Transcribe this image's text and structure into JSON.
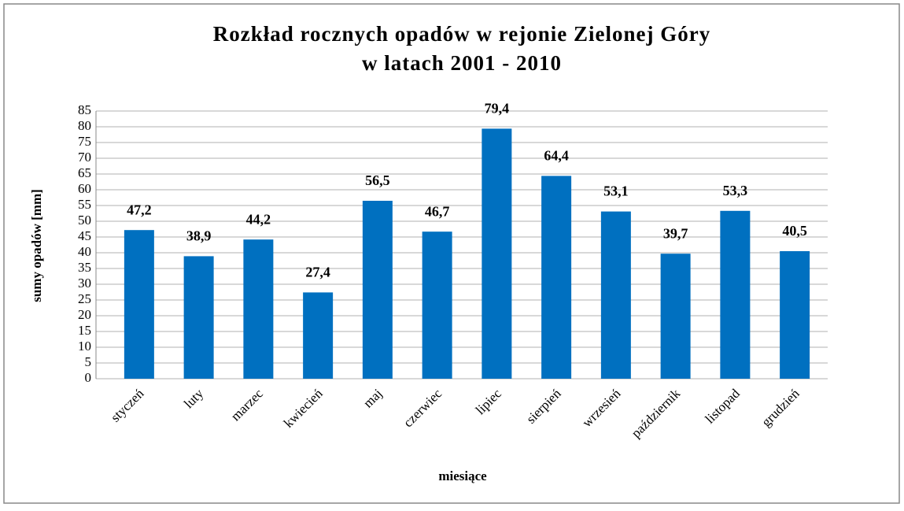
{
  "chart_data": {
    "type": "bar",
    "title": [
      "Rozkład rocznych opadów w rejonie Zielonej Góry",
      "w latach 2001 - 2010"
    ],
    "ylabel": "sumy opadów [mm]",
    "xlabel": "miesiące",
    "categories": [
      "styczeń",
      "luty",
      "marzec",
      "kwiecień",
      "maj",
      "czerwiec",
      "lipiec",
      "sierpień",
      "wrzesień",
      "październik",
      "listopad",
      "grudzień"
    ],
    "values": [
      47.2,
      38.9,
      44.2,
      27.4,
      56.5,
      46.7,
      79.4,
      64.4,
      53.1,
      39.7,
      53.3,
      40.5
    ],
    "value_labels": [
      "47,2",
      "38,9",
      "44,2",
      "27,4",
      "56,5",
      "46,7",
      "79,4",
      "64,4",
      "53,1",
      "39,7",
      "53,3",
      "40,5"
    ],
    "color": "#0070c0",
    "ylim": [
      0,
      85
    ],
    "yticks": [
      0,
      5,
      10,
      15,
      20,
      25,
      30,
      35,
      40,
      45,
      50,
      55,
      60,
      65,
      70,
      75,
      80,
      85
    ],
    "grid": true
  }
}
